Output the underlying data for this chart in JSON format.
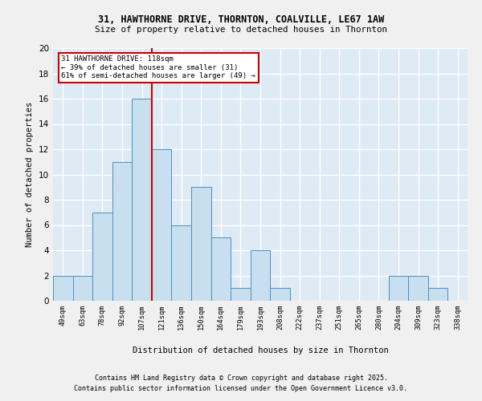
{
  "title1": "31, HAWTHORNE DRIVE, THORNTON, COALVILLE, LE67 1AW",
  "title2": "Size of property relative to detached houses in Thornton",
  "xlabel": "Distribution of detached houses by size in Thornton",
  "ylabel": "Number of detached properties",
  "bin_labels": [
    "49sqm",
    "63sqm",
    "78sqm",
    "92sqm",
    "107sqm",
    "121sqm",
    "136sqm",
    "150sqm",
    "164sqm",
    "179sqm",
    "193sqm",
    "208sqm",
    "222sqm",
    "237sqm",
    "251sqm",
    "265sqm",
    "280sqm",
    "294sqm",
    "309sqm",
    "323sqm",
    "338sqm"
  ],
  "bar_heights": [
    2,
    2,
    7,
    11,
    16,
    12,
    6,
    9,
    5,
    1,
    4,
    1,
    0,
    0,
    0,
    0,
    0,
    2,
    2,
    1,
    0
  ],
  "bar_color": "#c8dff0",
  "bar_edge_color": "#4d8fbe",
  "background_color": "#deeaf4",
  "grid_color": "#ffffff",
  "red_line_bin_index": 5,
  "red_line_color": "#cc0000",
  "annotation_text": "31 HAWTHORNE DRIVE: 118sqm\n← 39% of detached houses are smaller (31)\n61% of semi-detached houses are larger (49) →",
  "annotation_box_color": "#ffffff",
  "annotation_box_edge": "#cc0000",
  "ylim": [
    0,
    20
  ],
  "yticks": [
    0,
    2,
    4,
    6,
    8,
    10,
    12,
    14,
    16,
    18,
    20
  ],
  "fig_bg": "#f0f0f0",
  "footnote1": "Contains HM Land Registry data © Crown copyright and database right 2025.",
  "footnote2": "Contains public sector information licensed under the Open Government Licence v3.0."
}
